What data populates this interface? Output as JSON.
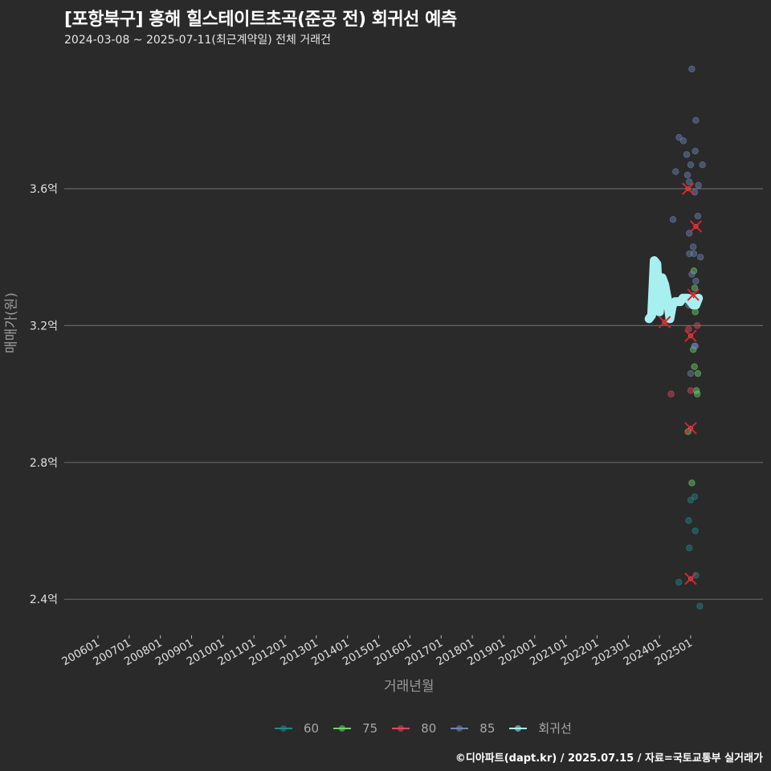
{
  "header": {
    "title": "[포항북구] 흥해 힐스테이트초곡(준공 전) 회귀선 예측",
    "subtitle": "2024-03-08 ~ 2025-07-11(최근계약일) 전체 거래건"
  },
  "axes": {
    "ylabel": "매매가(원)",
    "xlabel": "거래년월"
  },
  "legend": {
    "items": [
      {
        "label": "60",
        "color": "#1f8a8a"
      },
      {
        "label": "75",
        "color": "#6fd36f"
      },
      {
        "label": "80",
        "color": "#e04a5a"
      },
      {
        "label": "85",
        "color": "#6f86b5"
      },
      {
        "label": "회귀선",
        "color": "#a8f0f0"
      }
    ]
  },
  "caption": "©디아파트(dapt.kr) / 2025.07.15 / 자료=국토교통부 실거래가",
  "colors": {
    "background": "#2a2a2b",
    "grid": "#666666",
    "regression": "#a8f0f0",
    "predicted_marker": "#e0202e"
  },
  "chart_data": {
    "type": "scatter",
    "title": "[포항북구] 흥해 힐스테이트초곡(준공 전) 회귀선 예측",
    "subtitle": "2024-03-08 ~ 2025-07-11(최근계약일) 전체 거래건",
    "xlabel": "거래년월",
    "ylabel": "매매가(원)",
    "x_ticks": [
      "200601",
      "200701",
      "200801",
      "200901",
      "201001",
      "201101",
      "201201",
      "201301",
      "201401",
      "201501",
      "201601",
      "201701",
      "201801",
      "201901",
      "202001",
      "202101",
      "202201",
      "202301",
      "202401",
      "202501"
    ],
    "y_ticks": [
      "2.4억",
      "2.8억",
      "3.2억",
      "3.6억"
    ],
    "y_tick_values": [
      2.4,
      2.8,
      3.2,
      3.6
    ],
    "ylim": [
      2.33,
      3.98
    ],
    "grid": "horizontal major only",
    "legend_position": "bottom",
    "series": [
      {
        "name": "60",
        "color": "#1f8a8a",
        "points": [
          {
            "x": "2024-10",
            "y": 2.45
          },
          {
            "x": "2025-01",
            "y": 2.69
          },
          {
            "x": "2025-01",
            "y": 2.7
          },
          {
            "x": "2025-01",
            "y": 2.63
          },
          {
            "x": "2025-02",
            "y": 2.6
          },
          {
            "x": "2025-02",
            "y": 2.55
          },
          {
            "x": "2025-03",
            "y": 2.47
          },
          {
            "x": "2025-03",
            "y": 2.38
          }
        ]
      },
      {
        "name": "75",
        "color": "#6fd36f",
        "points": [
          {
            "x": "2025-03",
            "y": 2.74
          },
          {
            "x": "2024-12",
            "y": 2.89
          },
          {
            "x": "2025-02",
            "y": 3.0
          },
          {
            "x": "2025-04",
            "y": 3.01
          },
          {
            "x": "2025-03",
            "y": 3.06
          },
          {
            "x": "2025-04",
            "y": 3.08
          },
          {
            "x": "2025-02",
            "y": 3.13
          },
          {
            "x": "2025-01",
            "y": 3.31
          },
          {
            "x": "2025-03",
            "y": 3.36
          },
          {
            "x": "2025-02",
            "y": 3.24
          }
        ]
      },
      {
        "name": "80",
        "color": "#e04a5a",
        "points": [
          {
            "x": "2024-07",
            "y": 3.0
          },
          {
            "x": "2025-01",
            "y": 3.01
          },
          {
            "x": "2025-02",
            "y": 3.2
          },
          {
            "x": "2025-01",
            "y": 3.19
          }
        ]
      },
      {
        "name": "85",
        "color": "#6f86b5",
        "points": [
          {
            "x": "2025-03",
            "y": 3.95
          },
          {
            "x": "2025-03",
            "y": 3.8
          },
          {
            "x": "2024-07",
            "y": 3.75
          },
          {
            "x": "2024-11",
            "y": 3.74
          },
          {
            "x": "2025-02",
            "y": 3.71
          },
          {
            "x": "2025-01",
            "y": 3.7
          },
          {
            "x": "2025-01",
            "y": 3.67
          },
          {
            "x": "2025-04",
            "y": 3.67
          },
          {
            "x": "2024-08",
            "y": 3.65
          },
          {
            "x": "2024-11",
            "y": 3.64
          },
          {
            "x": "2025-02",
            "y": 3.62
          },
          {
            "x": "2025-04",
            "y": 3.61
          },
          {
            "x": "2025-01",
            "y": 3.59
          },
          {
            "x": "2024-07",
            "y": 3.51
          },
          {
            "x": "2025-03",
            "y": 3.52
          },
          {
            "x": "2025-02",
            "y": 3.47
          },
          {
            "x": "2025-02",
            "y": 3.43
          },
          {
            "x": "2024-11",
            "y": 3.41
          },
          {
            "x": "2025-03",
            "y": 3.41
          },
          {
            "x": "2025-04",
            "y": 3.4
          },
          {
            "x": "2025-03",
            "y": 3.35
          },
          {
            "x": "2025-03",
            "y": 3.33
          },
          {
            "x": "2025-02",
            "y": 3.27
          },
          {
            "x": "2025-01",
            "y": 3.26
          },
          {
            "x": "2025-02",
            "y": 3.14
          },
          {
            "x": "2025-04",
            "y": 3.14
          },
          {
            "x": "2025-01",
            "y": 3.06
          }
        ]
      },
      {
        "name": "회귀선",
        "color": "#a8f0f0",
        "type": "line",
        "points": [
          {
            "x": "2023-09",
            "y": 3.22
          },
          {
            "x": "2023-10",
            "y": 3.23
          },
          {
            "x": "2023-11",
            "y": 3.39
          },
          {
            "x": "2023-12",
            "y": 3.38
          },
          {
            "x": "2024-01",
            "y": 3.24
          },
          {
            "x": "2024-02",
            "y": 3.34
          },
          {
            "x": "2024-03",
            "y": 3.32
          },
          {
            "x": "2024-04",
            "y": 3.28
          },
          {
            "x": "2024-05",
            "y": 3.22
          },
          {
            "x": "2024-06",
            "y": 3.26
          },
          {
            "x": "2024-07",
            "y": 3.27
          },
          {
            "x": "2024-08",
            "y": 3.27
          },
          {
            "x": "2024-09",
            "y": 3.27
          },
          {
            "x": "2024-10",
            "y": 3.28
          },
          {
            "x": "2024-11",
            "y": 3.28
          },
          {
            "x": "2024-12",
            "y": 3.28
          },
          {
            "x": "2025-01",
            "y": 3.27
          },
          {
            "x": "2025-02",
            "y": 3.26
          },
          {
            "x": "2025-03",
            "y": 3.26
          },
          {
            "x": "2025-04",
            "y": 3.28
          }
        ]
      },
      {
        "name": "예측(X 마커)",
        "color": "#e0202e",
        "points": [
          {
            "x": "2024-12",
            "y": 3.6
          },
          {
            "x": "2025-03",
            "y": 3.49
          },
          {
            "x": "2025-02",
            "y": 3.29
          },
          {
            "x": "2024-03",
            "y": 3.21
          },
          {
            "x": "2025-01",
            "y": 3.17
          },
          {
            "x": "2025-01",
            "y": 2.9
          },
          {
            "x": "2025-01",
            "y": 2.46
          }
        ]
      }
    ]
  }
}
